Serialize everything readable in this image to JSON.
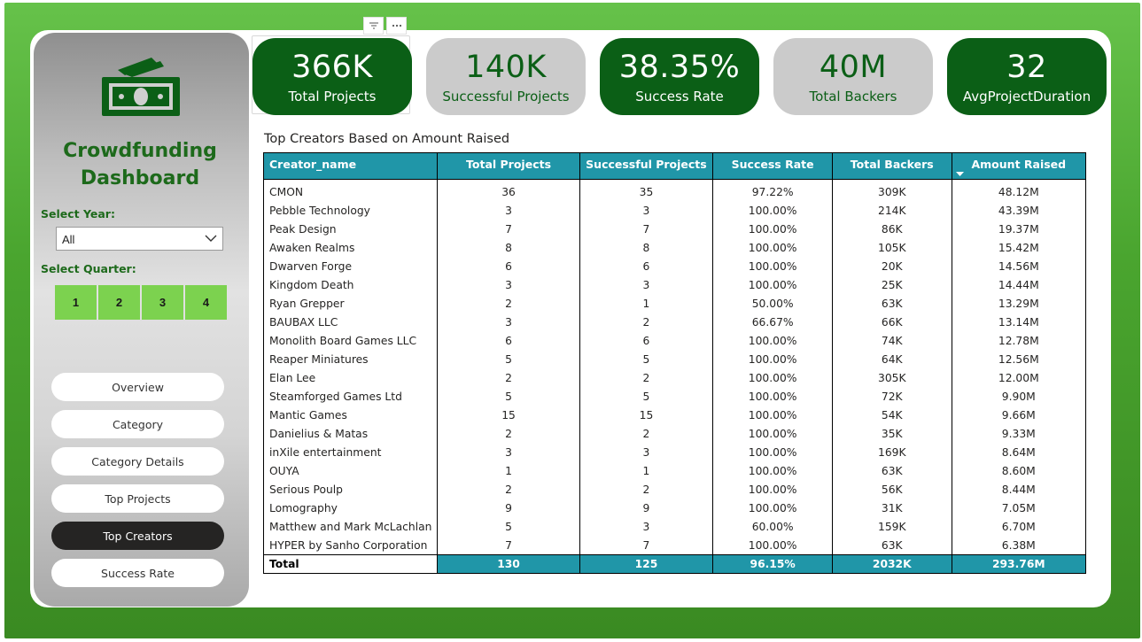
{
  "sidebar": {
    "title": "Crowdfunding Dashboard",
    "select_year_label": "Select Year:",
    "year_value": "All",
    "select_quarter_label": "Select Quarter:",
    "quarters": [
      "1",
      "2",
      "3",
      "4"
    ],
    "nav": [
      "Overview",
      "Category",
      "Category Details",
      "Top Projects",
      "Top Creators",
      "Success Rate"
    ],
    "active_nav": "Top Creators"
  },
  "kpis": [
    {
      "value": "366K",
      "label": "Total Projects",
      "style": "dark"
    },
    {
      "value": "140K",
      "label": "Successful Projects",
      "style": "light"
    },
    {
      "value": "38.35%",
      "label": "Success Rate",
      "style": "dark"
    },
    {
      "value": "40M",
      "label": "Total Backers",
      "style": "light"
    },
    {
      "value": "32",
      "label": "AvgProjectDuration",
      "style": "dark"
    }
  ],
  "table": {
    "title": "Top Creators Based on Amount Raised",
    "columns": [
      "Creator_name",
      "Total Projects",
      "Successful Projects",
      "Success Rate",
      "Total Backers",
      "Amount Raised"
    ],
    "rows": [
      [
        "CMON",
        "36",
        "35",
        "97.22%",
        "309K",
        "48.12M"
      ],
      [
        "Pebble Technology",
        "3",
        "3",
        "100.00%",
        "214K",
        "43.39M"
      ],
      [
        "Peak Design",
        "7",
        "7",
        "100.00%",
        "86K",
        "19.37M"
      ],
      [
        "Awaken Realms",
        "8",
        "8",
        "100.00%",
        "105K",
        "15.42M"
      ],
      [
        "Dwarven Forge",
        "6",
        "6",
        "100.00%",
        "20K",
        "14.56M"
      ],
      [
        "Kingdom Death",
        "3",
        "3",
        "100.00%",
        "25K",
        "14.44M"
      ],
      [
        "Ryan Grepper",
        "2",
        "1",
        "50.00%",
        "63K",
        "13.29M"
      ],
      [
        "BAUBAX LLC",
        "3",
        "2",
        "66.67%",
        "66K",
        "13.14M"
      ],
      [
        "Monolith Board Games LLC",
        "6",
        "6",
        "100.00%",
        "74K",
        "12.78M"
      ],
      [
        "Reaper Miniatures",
        "5",
        "5",
        "100.00%",
        "64K",
        "12.56M"
      ],
      [
        "Elan Lee",
        "2",
        "2",
        "100.00%",
        "305K",
        "12.00M"
      ],
      [
        "Steamforged Games Ltd",
        "5",
        "5",
        "100.00%",
        "72K",
        "9.90M"
      ],
      [
        "Mantic Games",
        "15",
        "15",
        "100.00%",
        "54K",
        "9.66M"
      ],
      [
        "Danielius & Matas",
        "2",
        "2",
        "100.00%",
        "35K",
        "9.33M"
      ],
      [
        "inXile entertainment",
        "3",
        "3",
        "100.00%",
        "169K",
        "8.64M"
      ],
      [
        "OUYA",
        "1",
        "1",
        "100.00%",
        "63K",
        "8.60M"
      ],
      [
        "Serious Poulp",
        "2",
        "2",
        "100.00%",
        "56K",
        "8.44M"
      ],
      [
        "Lomography",
        "9",
        "9",
        "100.00%",
        "31K",
        "7.05M"
      ],
      [
        "Matthew and Mark McLachlan",
        "5",
        "3",
        "60.00%",
        "159K",
        "6.70M"
      ],
      [
        "HYPER by Sanho Corporation",
        "7",
        "7",
        "100.00%",
        "63K",
        "6.38M"
      ]
    ],
    "total": [
      "Total",
      "130",
      "125",
      "96.15%",
      "2032K",
      "293.76M"
    ],
    "sorted_column": "Amount Raised",
    "sort_direction": "descending"
  },
  "colors": {
    "frame_green": "#4aa52f",
    "kpi_dark": "#0b5f16",
    "kpi_light": "#cbcbcb",
    "table_header": "#2096a8",
    "quarter_button": "#7cd24f",
    "title_green": "#1d6a1b"
  },
  "icons": {
    "logo": "money-bills-icon",
    "dropdown": "chevron-down-icon",
    "filter": "filter-icon",
    "more": "more-options-icon",
    "sort": "sort-descending-icon"
  }
}
